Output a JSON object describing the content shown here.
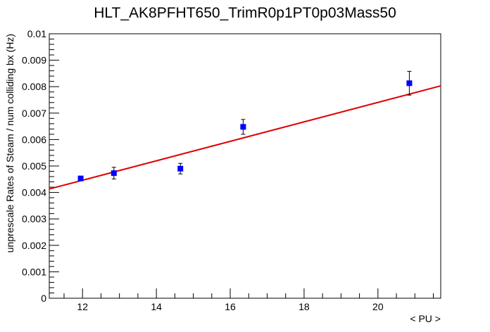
{
  "chart_data": {
    "type": "scatter",
    "title": "HLT_AK8PFHT650_TrimR0p1PT0p03Mass50",
    "xlabel": "< PU >",
    "ylabel": "unprescale Rates of Steam / num colliding bx (Hz)",
    "xlim": [
      11.1,
      21.7
    ],
    "ylim": [
      0,
      0.01
    ],
    "x_ticks": [
      12,
      14,
      16,
      18,
      20
    ],
    "x_tick_labels": [
      "12",
      "14",
      "16",
      "18",
      "20"
    ],
    "y_ticks": [
      0,
      0.001,
      0.002,
      0.003,
      0.004,
      0.005,
      0.006,
      0.007,
      0.008,
      0.009,
      0.01
    ],
    "y_tick_labels": [
      "0",
      "0.001",
      "0.002",
      "0.003",
      "0.004",
      "0.005",
      "0.006",
      "0.007",
      "0.008",
      "0.009",
      "0.01"
    ],
    "grid": false,
    "series": [
      {
        "marker_color": "#0000ff",
        "points": [
          {
            "x": 11.95,
            "y": 0.00453,
            "err": 8e-05
          },
          {
            "x": 12.85,
            "y": 0.00473,
            "err": 0.00022
          },
          {
            "x": 14.65,
            "y": 0.0049,
            "err": 0.0002
          },
          {
            "x": 16.35,
            "y": 0.00648,
            "err": 0.00028
          },
          {
            "x": 20.85,
            "y": 0.00813,
            "err": 0.00045
          }
        ]
      }
    ],
    "fit": {
      "color": "#e00000",
      "x": [
        11.1,
        21.7
      ],
      "y": [
        0.00413,
        0.00803
      ]
    }
  }
}
